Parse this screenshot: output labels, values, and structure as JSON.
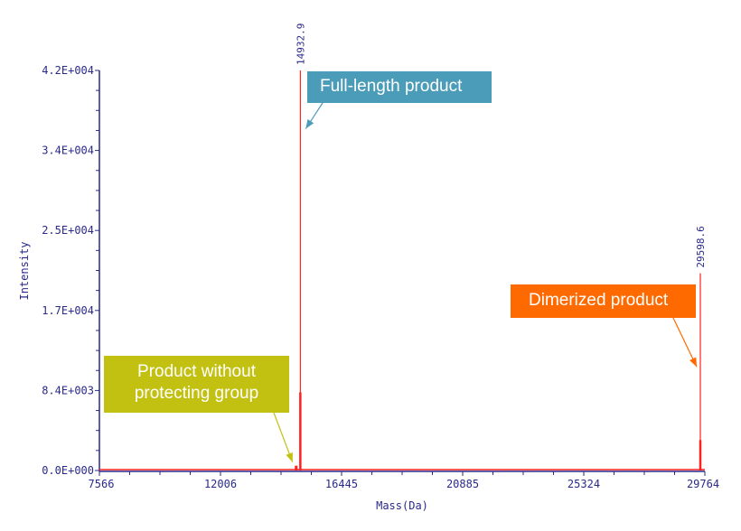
{
  "chart_data": {
    "type": "line",
    "title": "",
    "xlabel": "Mass(Da)",
    "ylabel": "Intensity",
    "xlim": [
      7566,
      29764
    ],
    "ylim": [
      0,
      42000
    ],
    "x_ticks": [
      "7566",
      "12006",
      "16445",
      "20885",
      "25324",
      "29764"
    ],
    "x_tick_values": [
      7566,
      12006,
      16445,
      20885,
      25324,
      29764
    ],
    "y_ticks": [
      "0.0E+000",
      "8.4E+003",
      "1.7E+004",
      "2.5E+004",
      "3.4E+004",
      "4.2E+004"
    ],
    "y_tick_values": [
      0,
      8400,
      16800,
      25200,
      33600,
      42000
    ],
    "peaks": [
      {
        "mass": 14780,
        "intensity": 500,
        "label": ""
      },
      {
        "mass": 14932.9,
        "intensity": 42000,
        "label": "14932.9"
      },
      {
        "mass": 29598.6,
        "intensity": 20700,
        "label": "29598.6"
      }
    ],
    "peak_cores": [
      {
        "mass": 14932.9,
        "intensity": 8200
      },
      {
        "mass": 29598.6,
        "intensity": 3200
      }
    ],
    "annotations": [
      {
        "line1": "Full-length product",
        "line2": "",
        "color": "#4b9cb8",
        "target_mass": 14932.9,
        "target_intensity": 35500
      },
      {
        "line1": "Dimerized product",
        "line2": "",
        "color": "#ff6a00",
        "target_mass": 29598.6,
        "target_intensity": 10500
      },
      {
        "line1": "Product without",
        "line2": "protecting group",
        "color": "#c2c112",
        "target_mass": 14780,
        "target_intensity": 500
      }
    ],
    "colors": {
      "axis": "#2a2a8a",
      "trace": "#ff2020"
    }
  }
}
